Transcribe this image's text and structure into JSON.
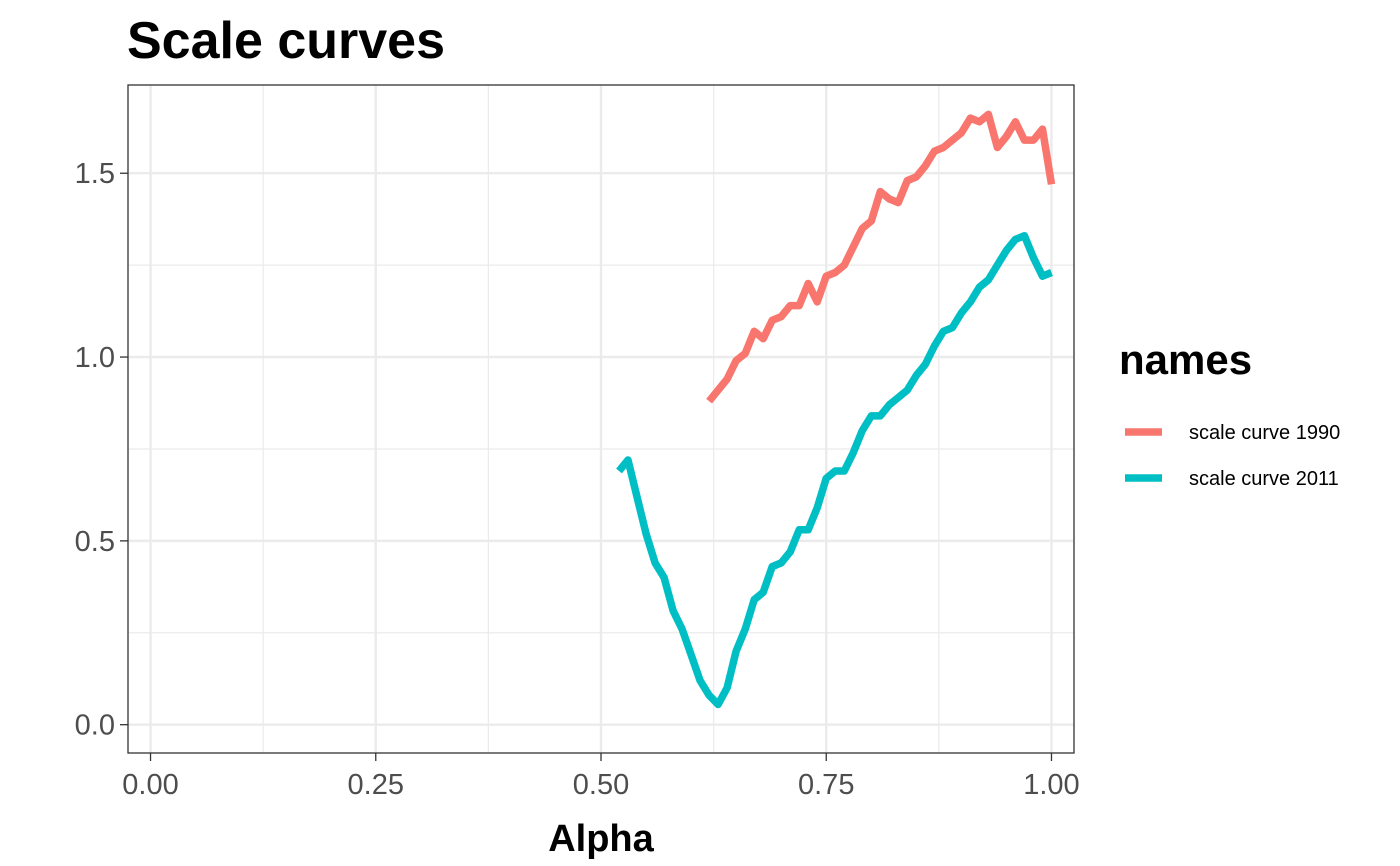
{
  "chart_data": {
    "type": "line",
    "title": "Scale curves",
    "xlabel": "Alpha",
    "ylabel": "",
    "xlim": [
      -0.025,
      1.025
    ],
    "ylim": [
      -0.077,
      1.74
    ],
    "x_ticks": [
      0.0,
      0.25,
      0.5,
      0.75,
      1.0
    ],
    "x_tick_labels": [
      "0.00",
      "0.25",
      "0.50",
      "0.75",
      "1.00"
    ],
    "y_ticks": [
      0.0,
      0.5,
      1.0,
      1.5
    ],
    "y_tick_labels": [
      "0.0",
      "0.5",
      "1.0",
      "1.5"
    ],
    "grid": true,
    "legend": {
      "title": "names",
      "position": "right"
    },
    "series": [
      {
        "name": "scale curve 1990",
        "color": "#F8766D",
        "x": [
          0.62,
          0.63,
          0.64,
          0.65,
          0.66,
          0.67,
          0.68,
          0.69,
          0.7,
          0.71,
          0.72,
          0.73,
          0.74,
          0.75,
          0.76,
          0.77,
          0.78,
          0.79,
          0.8,
          0.81,
          0.82,
          0.83,
          0.84,
          0.85,
          0.86,
          0.87,
          0.88,
          0.89,
          0.9,
          0.91,
          0.92,
          0.93,
          0.94,
          0.95,
          0.96,
          0.97,
          0.98,
          0.99,
          1.0
        ],
        "y": [
          0.88,
          0.91,
          0.94,
          0.99,
          1.01,
          1.07,
          1.05,
          1.1,
          1.11,
          1.14,
          1.14,
          1.2,
          1.15,
          1.22,
          1.23,
          1.25,
          1.3,
          1.35,
          1.37,
          1.45,
          1.43,
          1.42,
          1.48,
          1.49,
          1.52,
          1.56,
          1.57,
          1.59,
          1.61,
          1.65,
          1.64,
          1.66,
          1.57,
          1.6,
          1.64,
          1.59,
          1.59,
          1.62,
          1.47
        ]
      },
      {
        "name": "scale curve 2011",
        "color": "#00BFC4",
        "x": [
          0.52,
          0.53,
          0.54,
          0.55,
          0.56,
          0.57,
          0.58,
          0.59,
          0.6,
          0.61,
          0.62,
          0.63,
          0.64,
          0.65,
          0.66,
          0.67,
          0.68,
          0.69,
          0.7,
          0.71,
          0.72,
          0.73,
          0.74,
          0.75,
          0.76,
          0.77,
          0.78,
          0.79,
          0.8,
          0.81,
          0.82,
          0.83,
          0.84,
          0.85,
          0.86,
          0.87,
          0.88,
          0.89,
          0.9,
          0.91,
          0.92,
          0.93,
          0.94,
          0.95,
          0.96,
          0.97,
          0.98,
          0.99,
          1.0
        ],
        "y": [
          0.69,
          0.72,
          0.62,
          0.52,
          0.44,
          0.4,
          0.31,
          0.26,
          0.19,
          0.12,
          0.08,
          0.055,
          0.1,
          0.2,
          0.26,
          0.34,
          0.36,
          0.43,
          0.44,
          0.47,
          0.53,
          0.53,
          0.59,
          0.67,
          0.69,
          0.69,
          0.74,
          0.8,
          0.84,
          0.84,
          0.87,
          0.89,
          0.91,
          0.95,
          0.98,
          1.03,
          1.07,
          1.08,
          1.12,
          1.15,
          1.19,
          1.21,
          1.25,
          1.29,
          1.32,
          1.33,
          1.27,
          1.22,
          1.23
        ]
      }
    ]
  }
}
